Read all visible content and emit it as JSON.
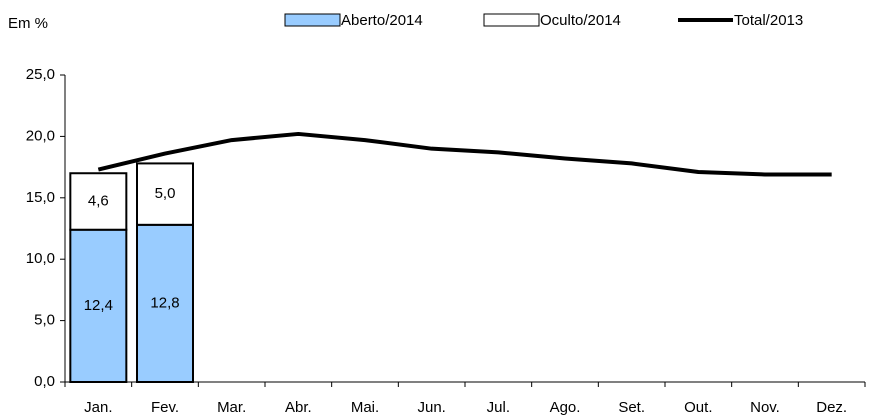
{
  "chart_data": {
    "type": "bar",
    "stacked": true,
    "y_label": "Em %",
    "categories": [
      "Jan.",
      "Fev.",
      "Mar.",
      "Abr.",
      "Mai.",
      "Jun.",
      "Jul.",
      "Ago.",
      "Set.",
      "Out.",
      "Nov.",
      "Dez."
    ],
    "series": [
      {
        "name": "Aberto/2014",
        "type": "bar",
        "color": "#99ccff",
        "values": [
          12.4,
          12.8,
          null,
          null,
          null,
          null,
          null,
          null,
          null,
          null,
          null,
          null
        ],
        "value_labels": [
          "12,4",
          "12,8",
          null,
          null,
          null,
          null,
          null,
          null,
          null,
          null,
          null,
          null
        ]
      },
      {
        "name": "Oculto/2014",
        "type": "bar",
        "color": "#ffffff",
        "values": [
          4.6,
          5.0,
          null,
          null,
          null,
          null,
          null,
          null,
          null,
          null,
          null,
          null
        ],
        "value_labels": [
          "4,6",
          "5,0",
          null,
          null,
          null,
          null,
          null,
          null,
          null,
          null,
          null,
          null
        ]
      },
      {
        "name": "Total/2013",
        "type": "line",
        "color": "#000000",
        "values": [
          17.3,
          18.6,
          19.7,
          20.2,
          19.7,
          19.0,
          18.7,
          18.2,
          17.8,
          17.1,
          16.9,
          16.9
        ]
      }
    ],
    "ylim": [
      0,
      25
    ],
    "yticks": [
      {
        "value": 0,
        "label": "0,0"
      },
      {
        "value": 5,
        "label": "5,0"
      },
      {
        "value": 10,
        "label": "10,0"
      },
      {
        "value": 15,
        "label": "15,0"
      },
      {
        "value": 20,
        "label": "20,0"
      },
      {
        "value": 25,
        "label": "25,0"
      }
    ],
    "grid": false
  }
}
